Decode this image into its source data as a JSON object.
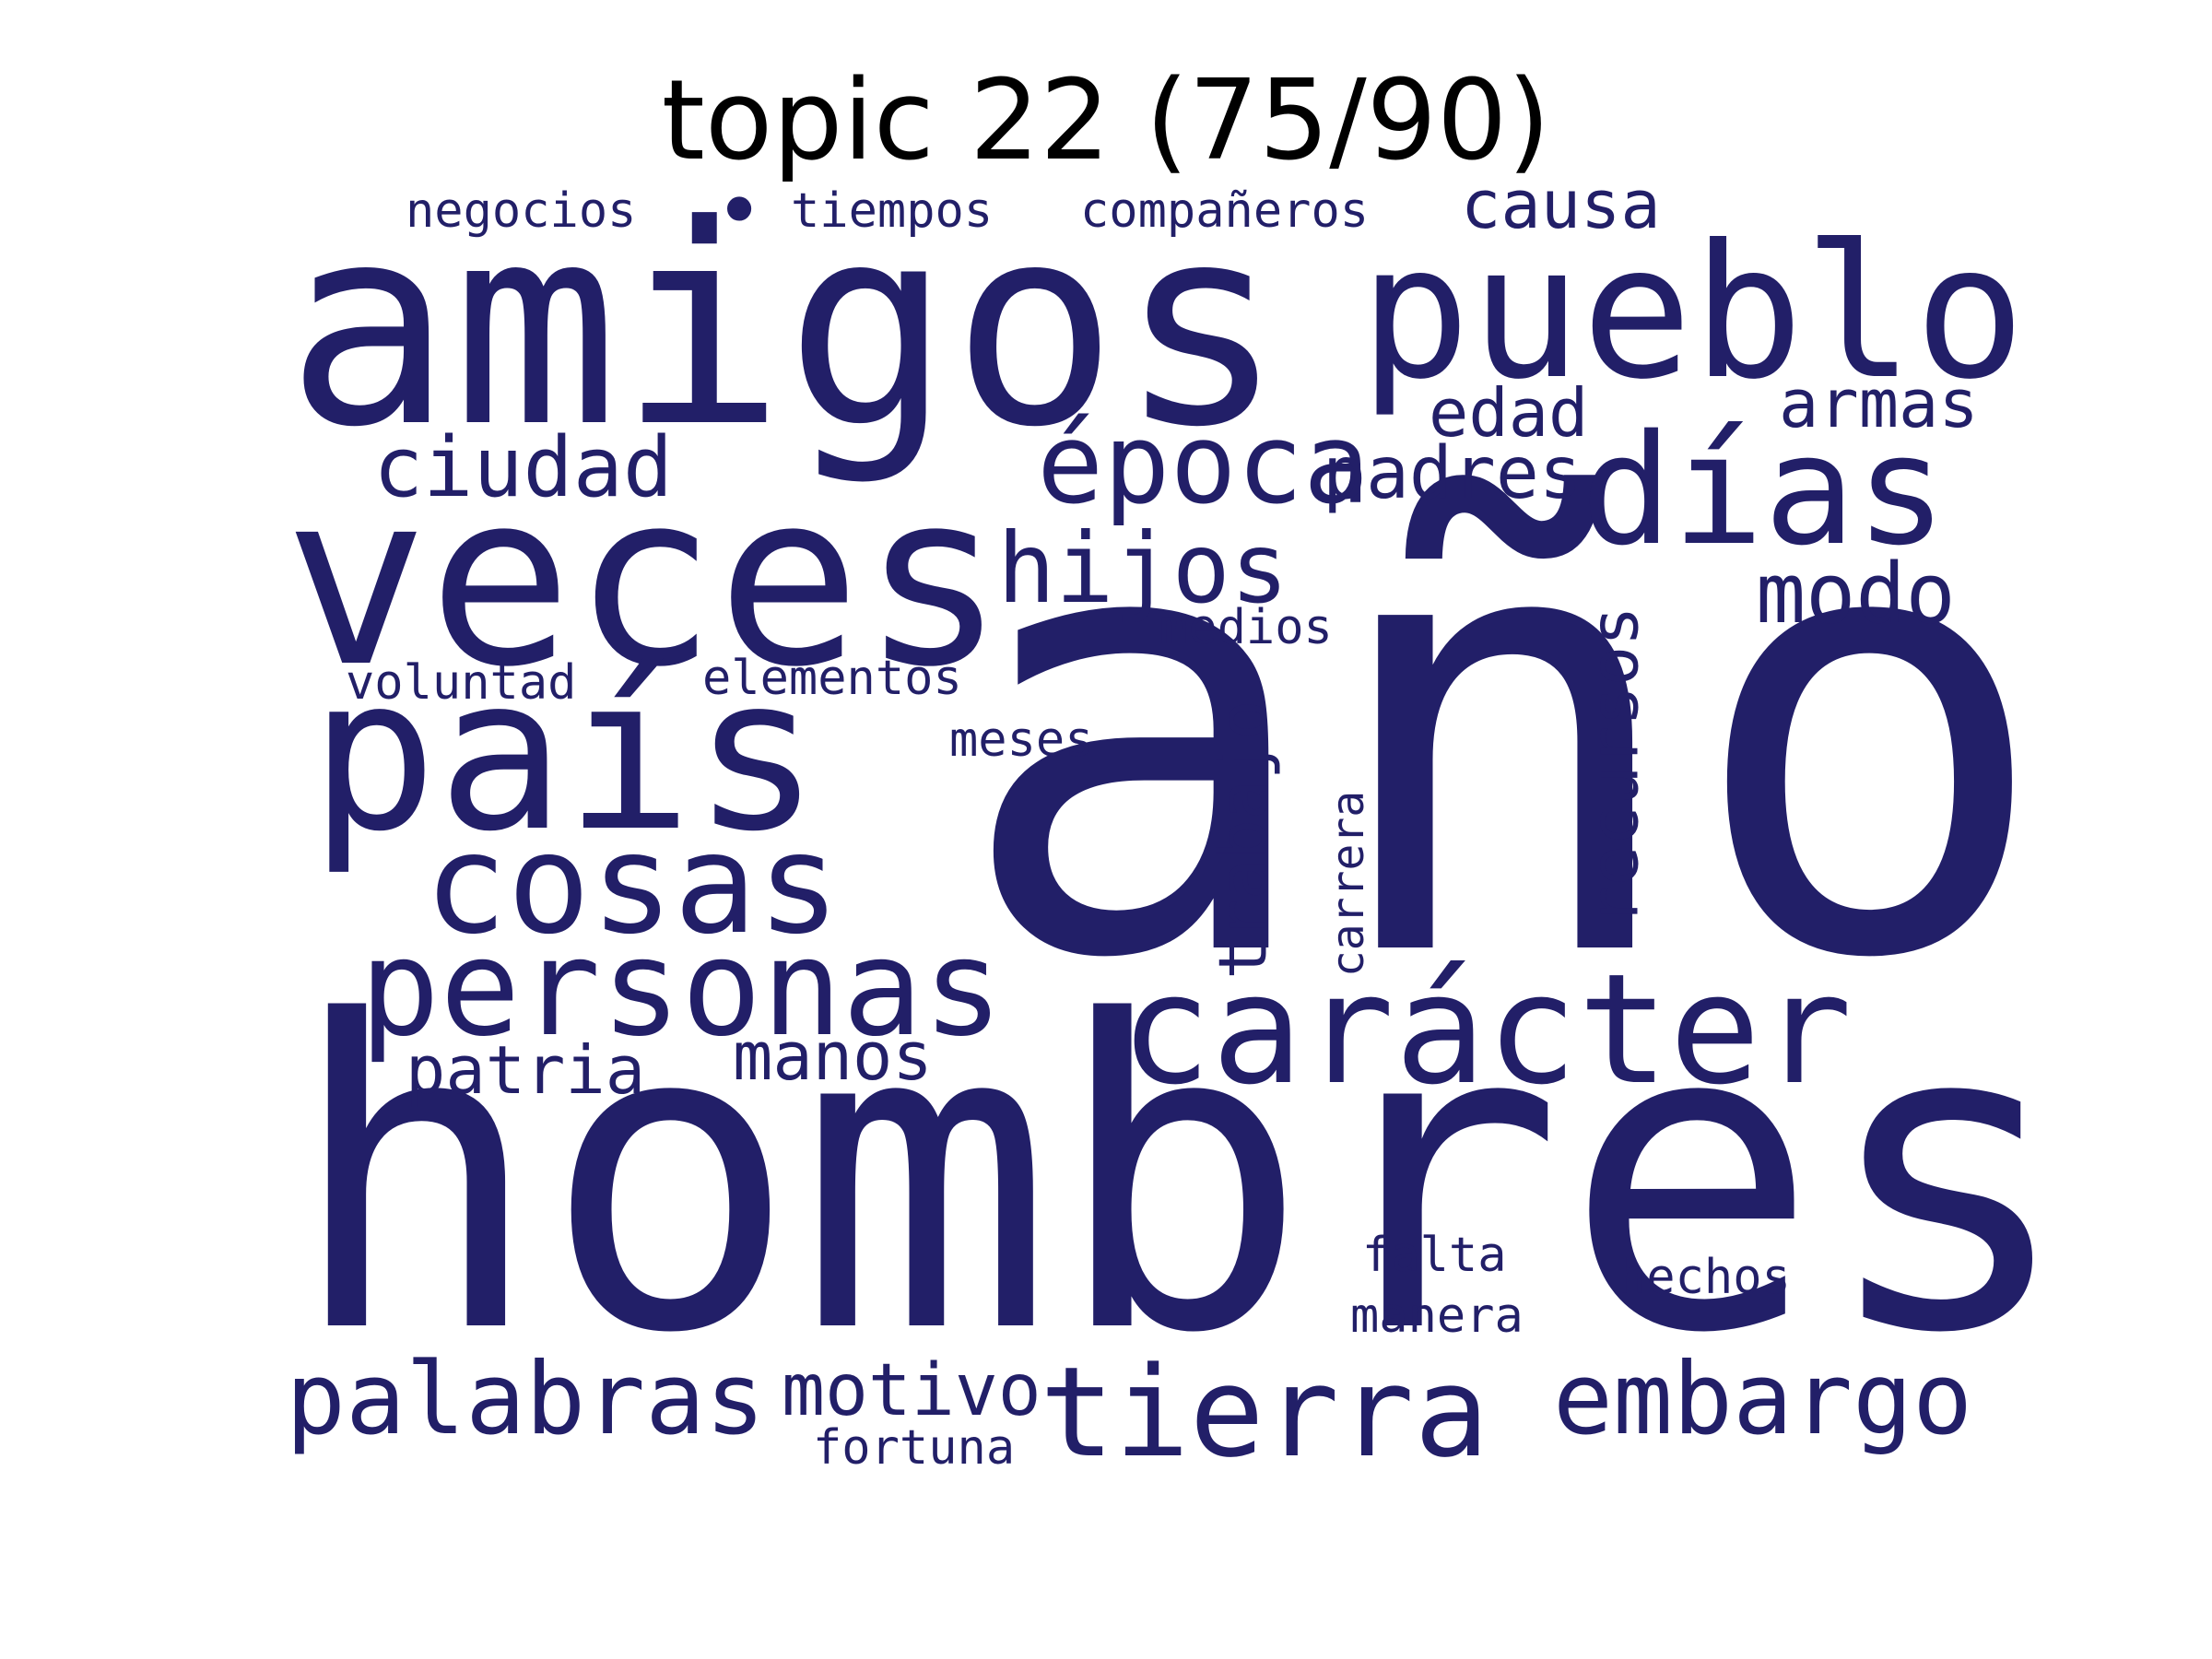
{
  "title": "topic 22 (75/90)",
  "word_color": "#221f68",
  "title_color": "#000000",
  "background": "#ffffff",
  "words": [
    {
      "text": "año",
      "vertical": false
    },
    {
      "text": "hombres",
      "vertical": false
    },
    {
      "text": "amigos",
      "vertical": false
    },
    {
      "text": "veces",
      "vertical": false
    },
    {
      "text": "pueblo",
      "vertical": false
    },
    {
      "text": "país",
      "vertical": false
    },
    {
      "text": "días",
      "vertical": false
    },
    {
      "text": "carácter",
      "vertical": false
    },
    {
      "text": "personas",
      "vertical": false
    },
    {
      "text": "cosas",
      "vertical": false
    },
    {
      "text": "tierra",
      "vertical": false
    },
    {
      "text": "época",
      "vertical": false
    },
    {
      "text": "palabras",
      "vertical": false
    },
    {
      "text": "embargo",
      "vertical": false
    },
    {
      "text": "hijos",
      "vertical": false
    },
    {
      "text": "ciudad",
      "vertical": false
    },
    {
      "text": "modo",
      "vertical": false
    },
    {
      "text": "recursos",
      "vertical": true
    },
    {
      "text": "trabajo",
      "vertical": true
    },
    {
      "text": "padres",
      "vertical": false
    },
    {
      "text": "motivo",
      "vertical": false
    },
    {
      "text": "causa",
      "vertical": false
    },
    {
      "text": "edad",
      "vertical": false
    },
    {
      "text": "armas",
      "vertical": false
    },
    {
      "text": "patria",
      "vertical": false
    },
    {
      "text": "manos",
      "vertical": false
    },
    {
      "text": "carrera",
      "vertical": true
    },
    {
      "text": "negocios",
      "vertical": false
    },
    {
      "text": "tiempos",
      "vertical": false
    },
    {
      "text": "compañeros",
      "vertical": false
    },
    {
      "text": "medios",
      "vertical": false
    },
    {
      "text": "voluntad",
      "vertical": false
    },
    {
      "text": "elementos",
      "vertical": false
    },
    {
      "text": "meses",
      "vertical": false
    },
    {
      "text": "falta",
      "vertical": false
    },
    {
      "text": "hechos",
      "vertical": false
    },
    {
      "text": "manera",
      "vertical": false
    },
    {
      "text": "fortuna",
      "vertical": false
    },
    {
      "text": "•",
      "vertical": false
    }
  ]
}
